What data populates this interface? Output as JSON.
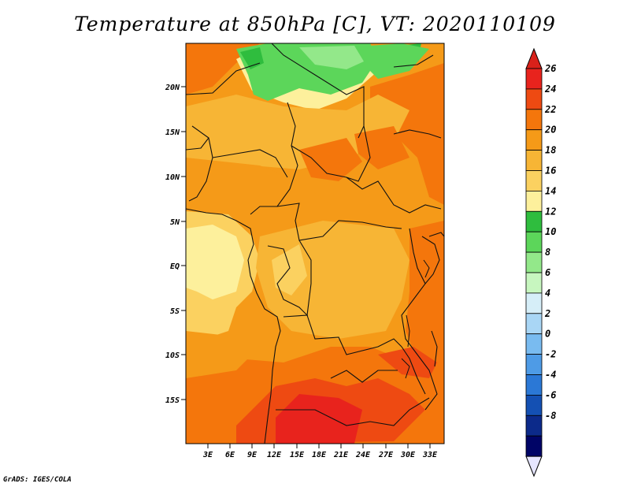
{
  "title": "Temperature at 850hPa [C], VT: 2020110109",
  "credit": "GrADS: IGES/COLA",
  "map": {
    "lat_labels": [
      "20N",
      "15N",
      "10N",
      "5N",
      "EQ",
      "5S",
      "10S",
      "15S"
    ],
    "lon_labels": [
      "3E",
      "6E",
      "9E",
      "12E",
      "15E",
      "18E",
      "21E",
      "24E",
      "27E",
      "30E",
      "33E"
    ],
    "region": "Central Africa"
  },
  "colorbar": {
    "levels": [
      "26",
      "24",
      "22",
      "20",
      "18",
      "16",
      "14",
      "12",
      "10",
      "8",
      "6",
      "4",
      "2",
      "0",
      "-2",
      "-4",
      "-6",
      "-8"
    ],
    "colors_top_to_bottom": [
      "#e8231d",
      "#ee4a12",
      "#f4760c",
      "#f59a18",
      "#f7b535",
      "#fbd160",
      "#fdf09c",
      "#2fbd3e",
      "#5cd65a",
      "#93e88a",
      "#c7f6bf",
      "#d6eef8",
      "#a9d6f5",
      "#79bbf0",
      "#4e9be6",
      "#2b78d6",
      "#1450b3",
      "#0c2a8a",
      "#000466"
    ],
    "over_color": "#d9211a",
    "under_color": "#e6e6ff"
  }
}
